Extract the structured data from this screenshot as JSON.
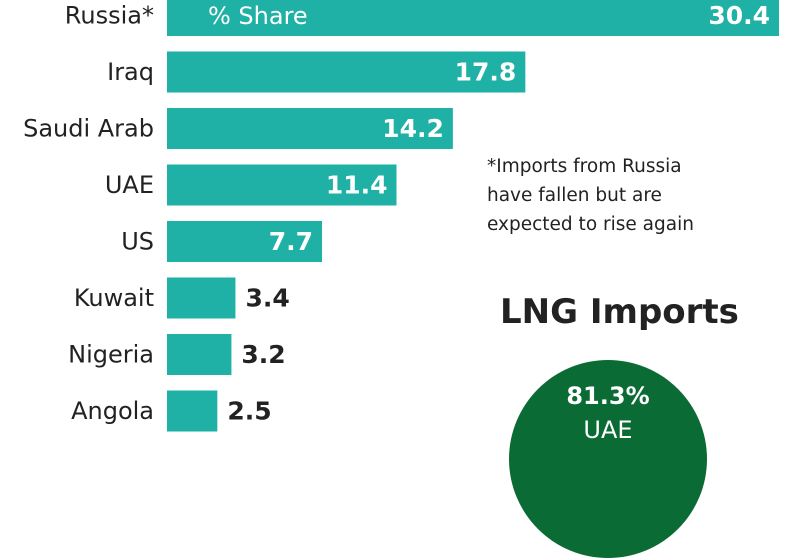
{
  "chart_data": {
    "type": "bar",
    "orientation": "horizontal",
    "series_label": "% Share",
    "categories": [
      "Russia*",
      "Iraq",
      "Saudi Arab",
      "UAE",
      "US",
      "Kuwait",
      "Nigeria",
      "Angola"
    ],
    "values": [
      30.4,
      17.8,
      14.2,
      11.4,
      7.7,
      3.4,
      3.2,
      2.5
    ],
    "value_labels": [
      "30.4",
      "17.8",
      "14.2",
      "11.4",
      "7.7",
      "3.4",
      "3.2",
      "2.5"
    ],
    "xlim": [
      0,
      30.4
    ],
    "bar_color": "#1fb0a6",
    "grid": false
  },
  "note": {
    "lines": [
      "*Imports from Russia",
      "have fallen but are",
      "expected to rise again"
    ]
  },
  "lng": {
    "title": "LNG Imports",
    "top_share_value": "81.3%",
    "top_share_country": "UAE",
    "circle_color": "#0b6b35"
  }
}
